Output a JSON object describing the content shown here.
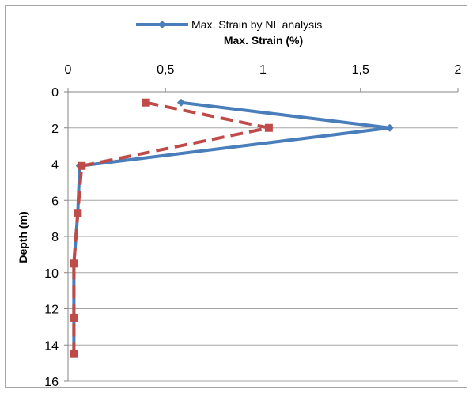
{
  "chart_data": {
    "type": "line",
    "xlabel": "Max. Strain (%)",
    "ylabel": "Depth (m)",
    "xlim": [
      0,
      2
    ],
    "ylim": [
      0,
      16
    ],
    "y_reversed": true,
    "x_axis_position": "top",
    "x_ticks": [
      "0",
      "0,5",
      "1",
      "1,5",
      "2"
    ],
    "y_ticks": [
      "0",
      "2",
      "4",
      "6",
      "8",
      "10",
      "12",
      "14",
      "16"
    ],
    "grid": "horizontal",
    "legend_position": "top",
    "series": [
      {
        "name": "Max. Strain by NL analysis",
        "color": "#4a7ebb",
        "marker": "diamond",
        "dash": "solid",
        "points": [
          {
            "x": 0.58,
            "y": 0.6
          },
          {
            "x": 1.65,
            "y": 2.0
          },
          {
            "x": 0.06,
            "y": 4.1
          },
          {
            "x": 0.05,
            "y": 6.7
          },
          {
            "x": 0.03,
            "y": 9.5
          },
          {
            "x": 0.03,
            "y": 12.5
          },
          {
            "x": 0.03,
            "y": 14.5
          }
        ]
      },
      {
        "name": "",
        "color": "#be4b48",
        "marker": "square",
        "dash": "dashed",
        "points": [
          {
            "x": 0.4,
            "y": 0.6
          },
          {
            "x": 1.03,
            "y": 2.0
          },
          {
            "x": 0.07,
            "y": 4.1
          },
          {
            "x": 0.05,
            "y": 6.7
          },
          {
            "x": 0.03,
            "y": 9.5
          },
          {
            "x": 0.03,
            "y": 12.5
          },
          {
            "x": 0.03,
            "y": 14.5
          }
        ]
      }
    ]
  }
}
